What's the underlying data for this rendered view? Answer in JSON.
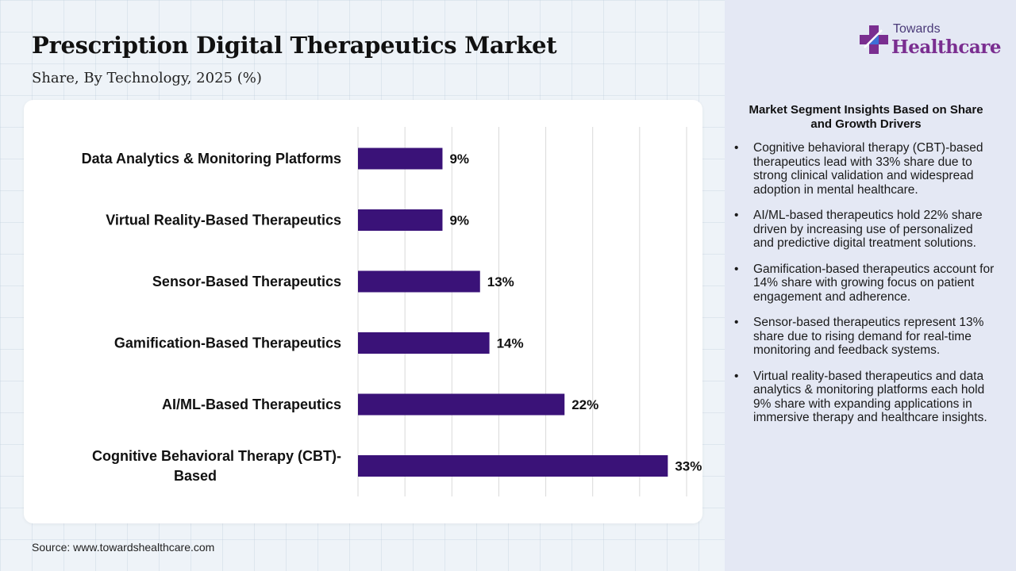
{
  "header": {
    "title": "Prescription Digital Therapeutics Market",
    "subtitle": "Share, By Technology, 2025 (%)"
  },
  "source": "Source: www.towardshealthcare.com",
  "logo": {
    "top": "Towards",
    "main": "Healthcare",
    "icon": "medical-cross-icon"
  },
  "colors": {
    "bar": "#3a1278",
    "logo_purple": "#7a2e90",
    "logo_blue": "#3d6fd8"
  },
  "insights": {
    "title": "Market Segment Insights Based on Share and Growth Drivers",
    "items": [
      "Cognitive behavioral therapy (CBT)-based therapeutics lead with 33% share due to strong clinical validation and widespread adoption in mental healthcare.",
      "AI/ML-based therapeutics hold 22% share driven by increasing use of personalized and predictive digital treatment solutions.",
      "Gamification-based therapeutics account for 14% share with growing focus on patient engagement and adherence.",
      "Sensor-based therapeutics represent 13% share due to rising demand for real-time monitoring and feedback systems.",
      "Virtual reality-based therapeutics and data analytics & monitoring platforms each hold 9% share with expanding applications in immersive therapy and healthcare insights."
    ]
  },
  "chart_data": {
    "type": "bar",
    "orientation": "horizontal",
    "title": "Prescription Digital Therapeutics Market",
    "subtitle": "Share, By Technology, 2025 (%)",
    "categories": [
      "Data Analytics & Monitoring Platforms",
      "Virtual Reality-Based Therapeutics",
      "Sensor-Based Therapeutics",
      "Gamification-Based Therapeutics",
      "AI/ML-Based Therapeutics",
      "Cognitive Behavioral Therapy (CBT)-Based"
    ],
    "category_label_lines": [
      [
        "Data Analytics & Monitoring Platforms"
      ],
      [
        "Virtual Reality-Based Therapeutics"
      ],
      [
        "Sensor-Based Therapeutics"
      ],
      [
        "Gamification-Based Therapeutics"
      ],
      [
        "AI/ML-Based Therapeutics"
      ],
      [
        "Cognitive Behavioral Therapy (CBT)-",
        "Based"
      ]
    ],
    "values": [
      9,
      9,
      13,
      14,
      22,
      33
    ],
    "data_labels": [
      "9%",
      "9%",
      "13%",
      "14%",
      "22%",
      "33%"
    ],
    "unit": "%",
    "xlim": [
      0,
      35
    ],
    "grid": true,
    "legend": "none",
    "bar_color": "#3a1278"
  }
}
